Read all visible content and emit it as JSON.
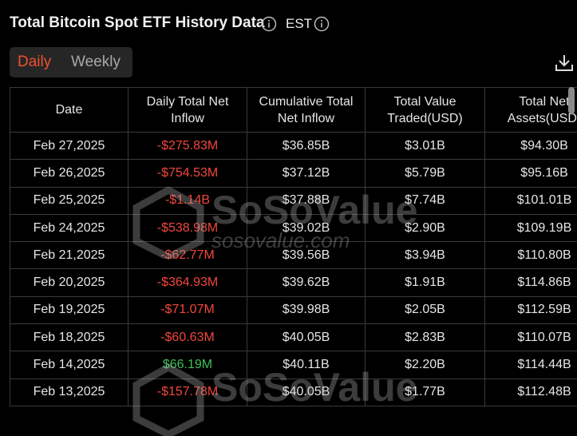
{
  "header": {
    "title": "Total Bitcoin Spot ETF History Data",
    "timezone": "EST"
  },
  "tabs": [
    "Daily",
    "Weekly"
  ],
  "watermark": {
    "brand": "SoSoValue",
    "site": "sosovalue.com"
  },
  "table": {
    "columns": [
      "Date",
      "Daily Total Net Inflow",
      "Cumulative Total Net Inflow",
      "Total Value Traded(USD)",
      "Total Net Assets(USD)"
    ],
    "rows": [
      [
        "Feb 27,2025",
        "-$275.83M",
        "$36.85B",
        "$3.01B",
        "$94.30B"
      ],
      [
        "Feb 26,2025",
        "-$754.53M",
        "$37.12B",
        "$5.79B",
        "$95.16B"
      ],
      [
        "Feb 25,2025",
        "-$1.14B",
        "$37.88B",
        "$7.74B",
        "$101.01B"
      ],
      [
        "Feb 24,2025",
        "-$538.98M",
        "$39.02B",
        "$2.90B",
        "$109.19B"
      ],
      [
        "Feb 21,2025",
        "-$62.77M",
        "$39.56B",
        "$3.94B",
        "$110.80B"
      ],
      [
        "Feb 20,2025",
        "-$364.93M",
        "$39.62B",
        "$1.91B",
        "$114.86B"
      ],
      [
        "Feb 19,2025",
        "-$71.07M",
        "$39.98B",
        "$2.05B",
        "$112.59B"
      ],
      [
        "Feb 18,2025",
        "-$60.63M",
        "$40.05B",
        "$2.83B",
        "$110.07B"
      ],
      [
        "Feb 14,2025",
        "$66.19M",
        "$40.11B",
        "$2.20B",
        "$114.44B"
      ],
      [
        "Feb 13,2025",
        "-$157.78M",
        "$40.05B",
        "$1.77B",
        "$112.48B"
      ]
    ]
  }
}
